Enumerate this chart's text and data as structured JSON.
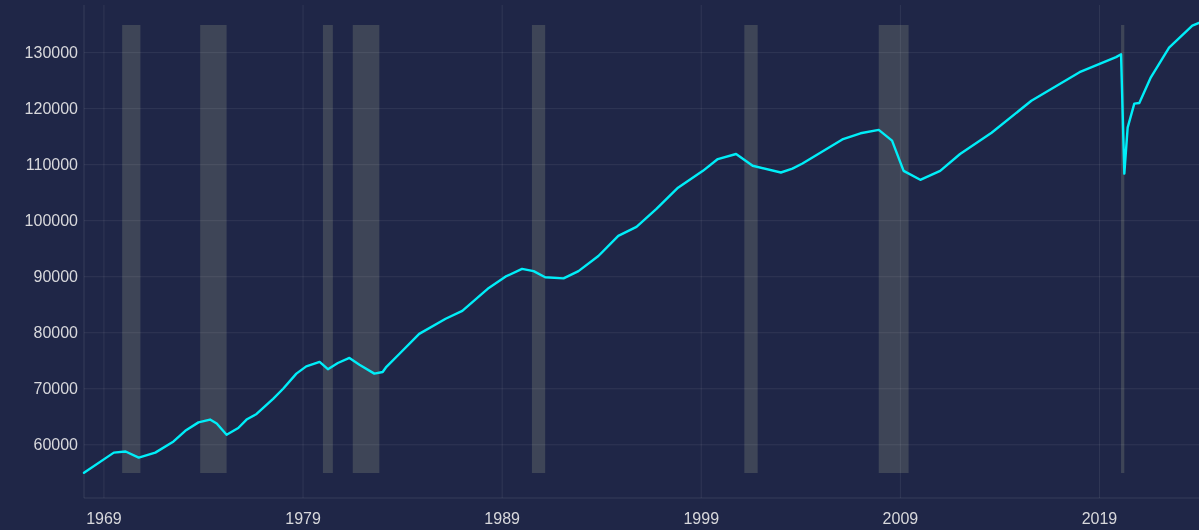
{
  "chart_data": {
    "type": "line",
    "x": [
      "1968-01",
      "1969-07",
      "1970-02",
      "1970-10",
      "1971-08",
      "1972-07",
      "1973-02",
      "1973-10",
      "1974-05",
      "1974-09",
      "1975-03",
      "1975-10",
      "1976-03",
      "1976-09",
      "1977-07",
      "1978-01",
      "1978-09",
      "1979-03",
      "1979-11",
      "1980-04",
      "1980-10",
      "1981-05",
      "1981-11",
      "1982-08",
      "1983-01",
      "1983-03",
      "1983-11",
      "1984-11",
      "1986-03",
      "1987-01",
      "1988-05",
      "1989-03",
      "1990-01",
      "1990-08",
      "1991-03",
      "1992-02",
      "1992-11",
      "1993-11",
      "1994-11",
      "1995-10",
      "1996-10",
      "1997-11",
      "1999-02",
      "1999-11",
      "2000-10",
      "2001-08",
      "2003-01",
      "2003-08",
      "2004-02",
      "2006-02",
      "2007-01",
      "2007-12",
      "2008-08",
      "2009-03",
      "2010-01",
      "2011-01",
      "2012-01",
      "2013-08",
      "2015-08",
      "2018-01",
      "2019-11",
      "2020-02",
      "2020-04",
      "2020-06",
      "2020-10",
      "2021-01",
      "2021-08",
      "2022-07",
      "2023-09",
      "2024-01"
    ],
    "series": [
      {
        "color": "#00eef8",
        "values": [
          55000,
          58600,
          58800,
          57700,
          58600,
          60600,
          62500,
          64000,
          64500,
          63800,
          61800,
          63000,
          64500,
          65500,
          68200,
          70000,
          72700,
          74000,
          74800,
          73500,
          74600,
          75500,
          74300,
          72700,
          73000,
          73800,
          76200,
          79800,
          82500,
          83900,
          88000,
          90000,
          91400,
          91000,
          89900,
          89700,
          91000,
          93700,
          97300,
          98900,
          102100,
          105900,
          108900,
          111000,
          111900,
          109800,
          108600,
          109300,
          110200,
          114500,
          115600,
          116200,
          114300,
          108900,
          107300,
          108900,
          111900,
          115700,
          121400,
          126500,
          129200,
          129700,
          108400,
          116600,
          120900,
          121000,
          125600,
          130900,
          134800,
          135300
        ]
      }
    ],
    "xlim": [
      "1968-01",
      "2024-01"
    ],
    "xticks": [
      {
        "value": "1969",
        "label": "1969"
      },
      {
        "value": "1979",
        "label": "1979"
      },
      {
        "value": "1989",
        "label": "1989"
      },
      {
        "value": "1999",
        "label": "1999"
      },
      {
        "value": "2009",
        "label": "2009"
      },
      {
        "value": "2019",
        "label": "2019"
      }
    ],
    "ylim": [
      50500,
      138500
    ],
    "yticks": [
      60000,
      70000,
      80000,
      90000,
      100000,
      110000,
      120000,
      130000
    ],
    "grid": true,
    "bands": [
      {
        "axis": "x",
        "from": "1969-12",
        "to": "1970-11",
        "color": "#3e4557"
      },
      {
        "axis": "x",
        "from": "1973-11",
        "to": "1975-03",
        "color": "#3e4557"
      },
      {
        "axis": "x",
        "from": "1980-01",
        "to": "1980-07",
        "color": "#3e4557"
      },
      {
        "axis": "x",
        "from": "1981-07",
        "to": "1982-11",
        "color": "#3e4557"
      },
      {
        "axis": "x",
        "from": "1990-07",
        "to": "1991-03",
        "color": "#3e4557"
      },
      {
        "axis": "x",
        "from": "2001-03",
        "to": "2001-11",
        "color": "#3e4557"
      },
      {
        "axis": "x",
        "from": "2007-12",
        "to": "2009-06",
        "color": "#3e4557"
      },
      {
        "axis": "x",
        "from": "2020-02",
        "to": "2020-04",
        "color": "#3e4557"
      }
    ]
  }
}
